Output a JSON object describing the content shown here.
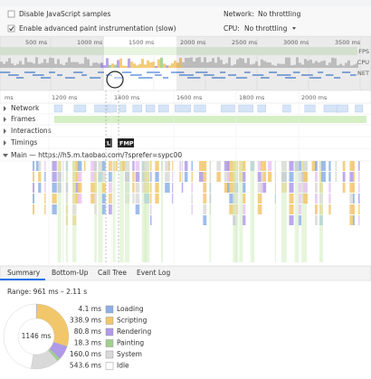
{
  "settings": {
    "disable_js": "Disable JavaScript samples",
    "advanced_paint": "Enable advanced paint instrumentation (slow)",
    "network_label": "Network:",
    "network_value": "No throttling",
    "cpu_label": "CPU:",
    "cpu_value": "No throttling"
  },
  "overview": {
    "ticks": [
      "500 ms",
      "1000 ms",
      "1500 ms",
      "2000 ms",
      "2500 ms",
      "3000 ms",
      "3500 ms"
    ],
    "lanes": [
      "FPS",
      "CPU",
      "NET"
    ]
  },
  "ruler": [
    "ms",
    "1200 ms",
    "1400 ms",
    "1600 ms",
    "1800 ms",
    "2000 ms"
  ],
  "tracks": [
    "Network",
    "Frames",
    "Interactions",
    "Timings",
    "Main — https://h5.m.taobao.com/?sprefer=sypc00"
  ],
  "markers": [
    "L",
    "FMP"
  ],
  "tabs": [
    "Summary",
    "Bottom-Up",
    "Call Tree",
    "Event Log"
  ],
  "summary": {
    "range": "Range: 961 ms – 2.11 s",
    "total": "1146 ms",
    "items": [
      {
        "name": "Loading",
        "value": 4.1,
        "label": "4.1 ms",
        "color": "#8cb0e6"
      },
      {
        "name": "Scripting",
        "value": 338.9,
        "label": "338.9 ms",
        "color": "#f2c76b"
      },
      {
        "name": "Rendering",
        "value": 80.8,
        "label": "80.8 ms",
        "color": "#af9ae8"
      },
      {
        "name": "Painting",
        "value": 18.3,
        "label": "18.3 ms",
        "color": "#9ed18b"
      },
      {
        "name": "System",
        "value": 160.0,
        "label": "160.0 ms",
        "color": "#d9d9d9"
      },
      {
        "name": "Idle",
        "value": 543.6,
        "label": "543.6 ms",
        "color": "#ffffff"
      }
    ]
  }
}
